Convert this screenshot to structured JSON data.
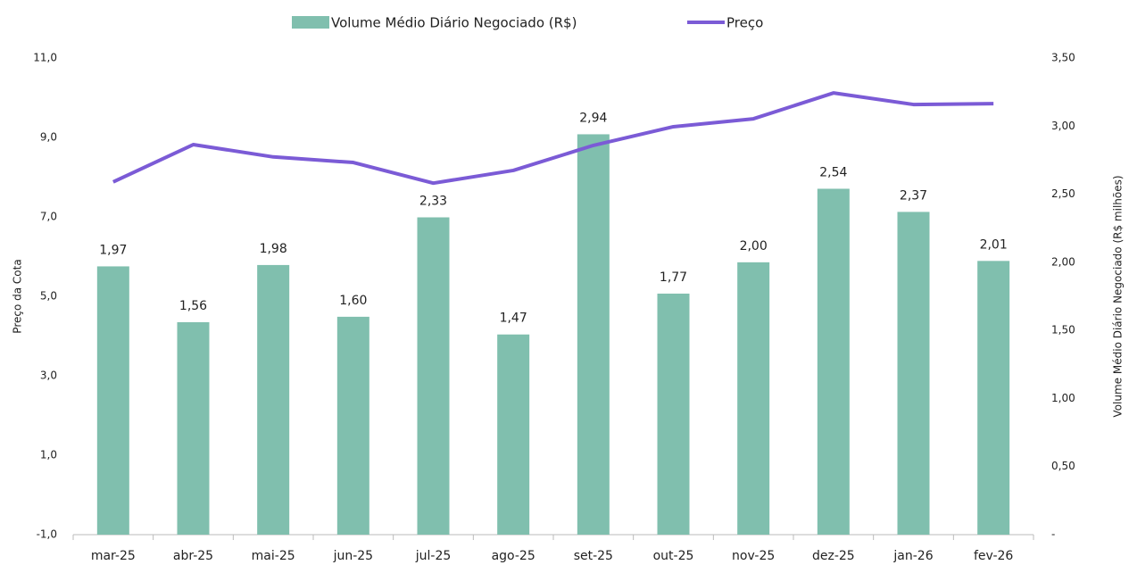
{
  "chart_data": {
    "type": "bar_line",
    "categories": [
      "mar-25",
      "abr-25",
      "mai-25",
      "jun-25",
      "jul-25",
      "ago-25",
      "set-25",
      "out-25",
      "nov-25",
      "dez-25",
      "jan-26",
      "fev-26"
    ],
    "series": [
      {
        "name": "Volume Médio Diário Negociado (R$)",
        "type": "bar",
        "axis": "y2",
        "color": "#80bfae",
        "values": [
          1.97,
          1.56,
          1.98,
          1.6,
          2.33,
          1.47,
          2.94,
          1.77,
          2.0,
          2.54,
          2.37,
          2.01
        ],
        "value_labels": [
          "1,97",
          "1,56",
          "1,98",
          "1,60",
          "2,33",
          "1,47",
          "2,94",
          "1,77",
          "2,00",
          "2,54",
          "2,37",
          "2,01"
        ]
      },
      {
        "name": "Preço",
        "type": "line",
        "axis": "y",
        "color": "#7b5bd6",
        "values": [
          7.88,
          8.82,
          8.51,
          8.37,
          7.85,
          8.17,
          8.8,
          9.27,
          9.47,
          10.12,
          9.83,
          9.85
        ]
      }
    ],
    "ylabel": "Preço da Cota",
    "y2label": "Volume Médio Diário Negociado (R$ milhões)",
    "ylim": [
      -1,
      11
    ],
    "yticks": [
      {
        "value": -1,
        "label": "-1,0"
      },
      {
        "value": 1,
        "label": "1,0"
      },
      {
        "value": 3,
        "label": "3,0"
      },
      {
        "value": 5,
        "label": "5,0"
      },
      {
        "value": 7,
        "label": "7,0"
      },
      {
        "value": 9,
        "label": "9,0"
      },
      {
        "value": 11,
        "label": "11,0"
      }
    ],
    "y2lim": [
      0,
      3.5
    ],
    "y2ticks": [
      {
        "value": 0,
        "label": "-"
      },
      {
        "value": 0.5,
        "label": "0,50"
      },
      {
        "value": 1,
        "label": "1,00"
      },
      {
        "value": 1.5,
        "label": "1,50"
      },
      {
        "value": 2,
        "label": "2,00"
      },
      {
        "value": 2.5,
        "label": "2,50"
      },
      {
        "value": 3,
        "label": "3,00"
      },
      {
        "value": 3.5,
        "label": "3,50"
      }
    ],
    "grid": false,
    "legend": "top"
  }
}
